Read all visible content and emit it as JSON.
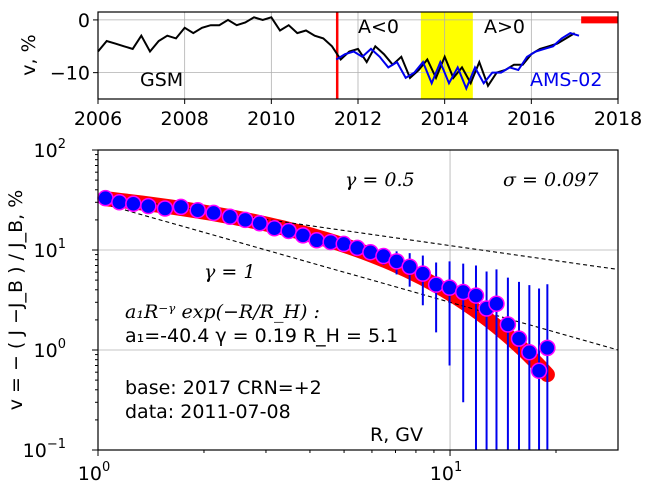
{
  "chart_data": [
    {
      "type": "line",
      "ylabel": "v, %",
      "x_ticks": [
        "2006",
        "2008",
        "2010",
        "2012",
        "2014",
        "2016",
        "2018"
      ],
      "y_ticks": [
        "0",
        "−10"
      ],
      "xlim": [
        2006,
        2018
      ],
      "ylim": [
        -15,
        1.5
      ],
      "grid": true,
      "annotations": {
        "gsm": "GSM",
        "neg": "A<0",
        "pos": "A>0",
        "ams": "AMS-02"
      },
      "colors": {
        "gsm": "#000000",
        "ams": "#0000ee",
        "marker": "#ff0000",
        "band": "#ffff00"
      },
      "marker_line_x": 2011.52,
      "reversal_band": [
        2013.45,
        2014.65
      ],
      "red_segment": {
        "x": [
          2017.15,
          2018.0
        ],
        "y": 0
      },
      "series": [
        {
          "name": "GSM",
          "x": [
            2006.0,
            2006.2,
            2006.4,
            2006.6,
            2006.8,
            2007.0,
            2007.2,
            2007.4,
            2007.6,
            2007.8,
            2008.0,
            2008.2,
            2008.4,
            2008.6,
            2008.8,
            2009.0,
            2009.2,
            2009.4,
            2009.6,
            2009.8,
            2010.0,
            2010.2,
            2010.4,
            2010.6,
            2010.8,
            2011.0,
            2011.2,
            2011.4,
            2011.6,
            2011.8,
            2012.0,
            2012.2,
            2012.4,
            2012.6,
            2012.8,
            2013.0,
            2013.2,
            2013.4,
            2013.6,
            2013.8,
            2014.0,
            2014.2,
            2014.4,
            2014.6,
            2014.8,
            2015.0,
            2015.2,
            2015.4,
            2015.6,
            2015.8,
            2016.0,
            2016.2,
            2016.4,
            2016.6,
            2016.8,
            2017.0
          ],
          "y": [
            -6,
            -4,
            -4.5,
            -5,
            -5.5,
            -3,
            -6,
            -4,
            -3,
            -3.5,
            -1.5,
            -2.5,
            -1.5,
            -1,
            -1,
            0,
            -1,
            -0.5,
            0.5,
            0,
            0.5,
            -2,
            -1,
            -2.5,
            -2,
            -3,
            -3.5,
            -5,
            -7.5,
            -6,
            -5.5,
            -8,
            -5,
            -6.5,
            -8.5,
            -7,
            -11,
            -9.5,
            -7.5,
            -11,
            -7,
            -11,
            -9,
            -12,
            -8,
            -12.5,
            -10,
            -9.5,
            -8.5,
            -8.5,
            -6.5,
            -5.5,
            -5,
            -4.5,
            -3.5,
            -2.5
          ]
        },
        {
          "name": "AMS-02",
          "x": [
            2011.5,
            2011.7,
            2011.9,
            2012.1,
            2012.3,
            2012.5,
            2012.7,
            2012.9,
            2013.1,
            2013.3,
            2013.5,
            2013.7,
            2013.9,
            2014.1,
            2014.3,
            2014.5,
            2014.7,
            2014.9,
            2015.1,
            2015.3,
            2015.5,
            2015.7,
            2015.9,
            2016.1,
            2016.3,
            2016.5,
            2016.7,
            2016.9,
            2017.1
          ],
          "y": [
            -7.5,
            -6.5,
            -6,
            -7,
            -5.5,
            -7,
            -9,
            -8,
            -11,
            -10,
            -8,
            -12,
            -8,
            -12,
            -9,
            -13,
            -9,
            -12,
            -10,
            -10,
            -9,
            -9.5,
            -7,
            -6,
            -5.5,
            -5,
            -3.5,
            -2.5,
            -3
          ]
        }
      ]
    },
    {
      "type": "scatter",
      "xlabel": "R, GV",
      "ylabel": "v  =  − ( J −J_B ) / J_B,  %",
      "x_scale": "log",
      "y_scale": "log",
      "xlim": [
        1,
        30
      ],
      "ylim": [
        0.1,
        100
      ],
      "grid": true,
      "x_ticks": [
        {
          "mant": "10",
          "exp": "0"
        },
        {
          "mant": "10",
          "exp": "1"
        }
      ],
      "y_ticks": [
        {
          "mant": "10",
          "exp": "−1"
        },
        {
          "mant": "10",
          "exp": "0"
        },
        {
          "mant": "10",
          "exp": "1"
        },
        {
          "mant": "10",
          "exp": "2"
        }
      ],
      "annotations": {
        "gamma_half": "γ = 0.5",
        "sigma": "σ = 0.097",
        "gamma_one": "γ = 1",
        "formula": "a₁R⁻ᵞ exp(−R/R_H) :",
        "fit_params": "a₁=-40.4  γ = 0.19  R_H =  5.1",
        "base": "base: 2017    CRN=+2",
        "data_date": "data: 2011-07-08"
      },
      "fit": {
        "a1": -40.4,
        "gamma": 0.19,
        "R_H": 5.1
      },
      "reference_lines": [
        {
          "gamma": 0.5,
          "A": 35
        },
        {
          "gamma": 1,
          "A": 30
        }
      ],
      "colors": {
        "points": "#0000ff",
        "point_edge": "#ff00ff",
        "errorbar": "#0000ee",
        "fit_band": "#ff0000"
      },
      "points": [
        {
          "x": 1.05,
          "y": 33,
          "err": 0
        },
        {
          "x": 1.15,
          "y": 30,
          "err": 0
        },
        {
          "x": 1.26,
          "y": 29,
          "err": 0
        },
        {
          "x": 1.39,
          "y": 27.5,
          "err": 0
        },
        {
          "x": 1.55,
          "y": 26,
          "err": 0
        },
        {
          "x": 1.72,
          "y": 27,
          "err": 0
        },
        {
          "x": 1.92,
          "y": 25,
          "err": 0
        },
        {
          "x": 2.13,
          "y": 23.5,
          "err": 0
        },
        {
          "x": 2.37,
          "y": 21.5,
          "err": 0
        },
        {
          "x": 2.62,
          "y": 20,
          "err": 0
        },
        {
          "x": 2.88,
          "y": 18.5,
          "err": 0
        },
        {
          "x": 3.17,
          "y": 16.5,
          "err": 0
        },
        {
          "x": 3.48,
          "y": 15.5,
          "err": 0
        },
        {
          "x": 3.82,
          "y": 14,
          "err": 0
        },
        {
          "x": 4.18,
          "y": 12.5,
          "err": 0.5
        },
        {
          "x": 4.58,
          "y": 12,
          "err": 0.8
        },
        {
          "x": 4.99,
          "y": 11.5,
          "err": 0.8
        },
        {
          "x": 5.45,
          "y": 10.5,
          "err": 1
        },
        {
          "x": 5.94,
          "y": 9.5,
          "err": 1.3
        },
        {
          "x": 6.47,
          "y": 8.7,
          "err": 1.6
        },
        {
          "x": 7.05,
          "y": 7.7,
          "err": 2
        },
        {
          "x": 7.68,
          "y": 6.8,
          "err": 2.5
        },
        {
          "x": 8.37,
          "y": 5.8,
          "err": 3
        },
        {
          "x": 9.13,
          "y": 4.5,
          "err": 3
        },
        {
          "x": 9.97,
          "y": 4.2,
          "err": 3.5
        },
        {
          "x": 10.9,
          "y": 3.8,
          "err": 3.5
        },
        {
          "x": 11.85,
          "y": 3.5,
          "err": 3.5
        },
        {
          "x": 12.7,
          "y": 2.6,
          "err": 3.5
        },
        {
          "x": 13.55,
          "y": 2.9,
          "err": 3.5
        },
        {
          "x": 14.6,
          "y": 1.8,
          "err": 3.5
        },
        {
          "x": 15.7,
          "y": 1.3,
          "err": 3.5
        },
        {
          "x": 16.8,
          "y": 0.95,
          "err": 3.5
        },
        {
          "x": 17.9,
          "y": 0.62,
          "err": 3.5
        },
        {
          "x": 18.9,
          "y": 1.05,
          "err": 3.5
        }
      ]
    }
  ]
}
